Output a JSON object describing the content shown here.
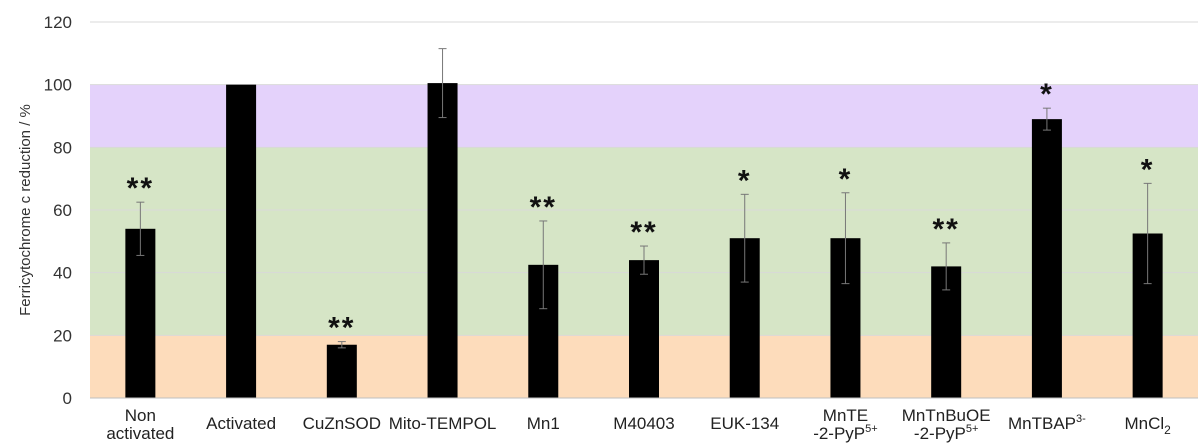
{
  "chart_data": {
    "type": "bar",
    "ylabel": "Ferricytochrome c reduction / %",
    "xlabel": "",
    "title": "",
    "ylim": [
      0,
      120
    ],
    "yticks": [
      0,
      20,
      40,
      60,
      80,
      100,
      120
    ],
    "grid": true,
    "legend": "none",
    "bands": [
      {
        "from": 0,
        "to": 20,
        "color": "#fddcbb"
      },
      {
        "from": 20,
        "to": 80,
        "color": "#d6e5c6"
      },
      {
        "from": 80,
        "to": 100,
        "color": "#e4d2fb"
      }
    ],
    "bar_color": "#000000",
    "categories": [
      {
        "name": "nonactivated",
        "lines": [
          "Non",
          "activated"
        ],
        "sup": "",
        "sub": ""
      },
      {
        "name": "activated",
        "lines": [
          "Activated"
        ],
        "sup": "",
        "sub": ""
      },
      {
        "name": "cuznsod",
        "lines": [
          "CuZnSOD"
        ],
        "sup": "",
        "sub": ""
      },
      {
        "name": "mito-tempol",
        "lines": [
          "Mito-TEMPOL"
        ],
        "sup": "",
        "sub": ""
      },
      {
        "name": "mn1",
        "lines": [
          "Mn1"
        ],
        "sup": "",
        "sub": ""
      },
      {
        "name": "m40403",
        "lines": [
          "M40403"
        ],
        "sup": "",
        "sub": ""
      },
      {
        "name": "euk-134",
        "lines": [
          "EUK-134"
        ],
        "sup": "",
        "sub": ""
      },
      {
        "name": "mnte-2-pyp",
        "lines": [
          "MnTE",
          "-2-PyP"
        ],
        "sup": "5+",
        "sub": ""
      },
      {
        "name": "mntnbuoe-2-pyp",
        "lines": [
          "MnTnBuOE",
          "-2-PyP"
        ],
        "sup": "5+",
        "sub": ""
      },
      {
        "name": "mntbap",
        "lines": [
          "MnTBAP"
        ],
        "sup": "3-",
        "sub": ""
      },
      {
        "name": "mncl2",
        "lines": [
          "MnCl"
        ],
        "sup": "",
        "sub": "2"
      }
    ],
    "values": [
      54,
      100,
      17,
      100.5,
      42.5,
      44,
      51,
      51,
      42,
      89,
      52.5
    ],
    "errors": [
      8.5,
      0,
      1,
      11,
      14,
      4.5,
      14,
      14.5,
      7.5,
      3.5,
      16
    ],
    "significance": [
      "**",
      "",
      "**",
      "",
      "**",
      "**",
      "*",
      "*",
      "**",
      "*",
      "*"
    ]
  }
}
